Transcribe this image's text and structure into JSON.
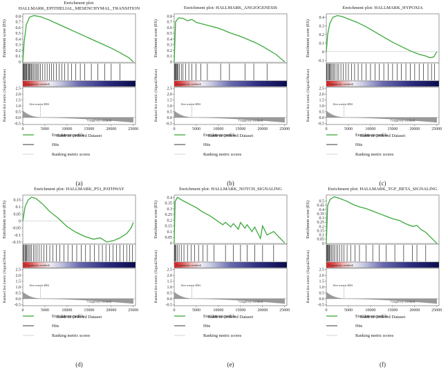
{
  "shared": {
    "x_axis_label": "Rank in Ordered Dataset",
    "x_ticks": [
      0,
      5000,
      10000,
      15000,
      20000,
      25000
    ],
    "x_max": 25500,
    "es_ylabel": "Enrichment score (ES)",
    "metric_ylabel": "Ranked list metric (Signal2Noise)",
    "metric_ticks": [
      "2.5",
      "2.0",
      "1.5",
      "1.0",
      "0.5",
      "0.0",
      "-0.5"
    ],
    "metric_range": [
      -0.6,
      2.6
    ],
    "positively": "'h' (positively correlated)",
    "negatively": "'f' (negatively correlated)",
    "zero_cross": "Zero cross at 4004",
    "zero_cross_rank": 4004,
    "legend": [
      "Enrichment profile",
      "Hits",
      "Ranking metric scores"
    ],
    "colors": {
      "profile": "#3aa83a",
      "hits": "#000000",
      "metric": "#8c8c8c",
      "positive": "#d62020",
      "negative": "#0b0b4e"
    }
  },
  "chart_data": [
    {
      "type": "line",
      "panel_label": "(a)",
      "title_line1": "Enrichment plot:",
      "title_line2": "HALLMARK_EPITHELIAL_MESENCHYMAL_TRANSITION",
      "y_ticks": [
        0.8,
        0.7,
        0.6,
        0.5,
        0.4,
        0.3,
        0.2,
        0.1,
        0.0
      ],
      "ylim": [
        -0.02,
        0.84
      ],
      "x": [
        0,
        300,
        800,
        1500,
        2500,
        4000,
        6000,
        8000,
        10000,
        12000,
        14000,
        16000,
        18000,
        20000,
        22000,
        24000,
        25000
      ],
      "y": [
        0.0,
        0.35,
        0.65,
        0.78,
        0.81,
        0.79,
        0.73,
        0.66,
        0.59,
        0.52,
        0.45,
        0.38,
        0.31,
        0.24,
        0.16,
        0.07,
        0.0
      ],
      "hits": [
        100,
        250,
        400,
        600,
        750,
        900,
        1100,
        1300,
        1500,
        1700,
        1900,
        2100,
        2400,
        2700,
        3000,
        3300,
        3600,
        4000,
        4500,
        5000,
        5500,
        6000,
        6500,
        7000,
        7600,
        8200,
        8800,
        9500,
        10200,
        11000,
        12000,
        13000,
        14000,
        15500,
        17000,
        18500,
        20000,
        22000
      ]
    },
    {
      "type": "line",
      "panel_label": "(b)",
      "title_line1": "Enrichment plot: HALLMARK_ANGIOGENESIS",
      "title_line2": "",
      "y_ticks": [
        0.8,
        0.7,
        0.6,
        0.5,
        0.4,
        0.3,
        0.2,
        0.1,
        0.0
      ],
      "ylim": [
        -0.02,
        0.84
      ],
      "x": [
        0,
        300,
        1000,
        2000,
        3000,
        4000,
        5000,
        6500,
        8000,
        9500,
        11000,
        12500,
        14000,
        15500,
        17000,
        18500,
        20000,
        21500,
        23000,
        25000
      ],
      "y": [
        0.0,
        0.7,
        0.77,
        0.76,
        0.72,
        0.74,
        0.69,
        0.66,
        0.63,
        0.6,
        0.56,
        0.51,
        0.47,
        0.43,
        0.38,
        0.33,
        0.27,
        0.2,
        0.13,
        0.0
      ],
      "hits": [
        80,
        200,
        350,
        500,
        700,
        900,
        1200,
        1600,
        2000,
        2600,
        3300,
        4000,
        4900,
        6000,
        7500,
        10500,
        12500,
        16000,
        18000,
        21000
      ]
    },
    {
      "type": "line",
      "panel_label": "(c)",
      "title_line1": "Enrichment plot: HALLMARK_HYPOXIA",
      "title_line2": "",
      "y_ticks": [
        0.4,
        0.3,
        0.2,
        0.1,
        0.0,
        -0.1
      ],
      "ylim": [
        -0.13,
        0.44
      ],
      "x": [
        0,
        300,
        800,
        1500,
        2500,
        3500,
        5000,
        7000,
        9000,
        11000,
        13000,
        15000,
        17000,
        19000,
        21000,
        22500,
        23500,
        24300,
        25000
      ],
      "y": [
        0.0,
        0.2,
        0.33,
        0.4,
        0.42,
        0.41,
        0.38,
        0.34,
        0.29,
        0.23,
        0.17,
        0.11,
        0.06,
        0.01,
        -0.03,
        -0.05,
        -0.07,
        -0.06,
        0.0
      ],
      "hits": [
        100,
        300,
        500,
        700,
        900,
        1100,
        1400,
        1700,
        2000,
        2400,
        2800,
        3300,
        3800,
        4400,
        5000,
        5700,
        6400,
        7200,
        8000,
        9000,
        10000,
        11000,
        12000,
        13000,
        14000,
        15000,
        16000,
        17000,
        18000,
        19000,
        20000,
        21000,
        22000,
        23000,
        23800,
        24500
      ]
    },
    {
      "type": "line",
      "panel_label": "(d)",
      "title_line1": "Enrichment plot: HALLMARK_P53_PATHWAY",
      "title_line2": "",
      "y_ticks": [
        0.15,
        0.1,
        0.05,
        0.0,
        -0.05,
        -0.1,
        -0.15
      ],
      "ylim": [
        -0.165,
        0.185
      ],
      "x": [
        0,
        500,
        1200,
        2000,
        3000,
        4500,
        6000,
        8000,
        10000,
        12000,
        14000,
        16000,
        17500,
        19000,
        20500,
        22000,
        23500,
        24500,
        25000
      ],
      "y": [
        0.0,
        0.1,
        0.15,
        0.17,
        0.16,
        0.12,
        0.07,
        0.02,
        -0.04,
        -0.08,
        -0.11,
        -0.13,
        -0.12,
        -0.15,
        -0.14,
        -0.12,
        -0.09,
        -0.05,
        -0.01
      ],
      "hits": [
        100,
        300,
        500,
        700,
        900,
        1100,
        1400,
        1700,
        2000,
        2400,
        2800,
        3200,
        3700,
        4200,
        4800,
        5400,
        6100,
        6800,
        7600,
        8400,
        9300,
        10200,
        11200,
        12200,
        13200,
        14200,
        15200,
        16200,
        17200,
        18000,
        18800,
        19600,
        20400,
        21200,
        22000,
        22800,
        23500,
        24200,
        24800
      ]
    },
    {
      "type": "line",
      "panel_label": "(e)",
      "title_line1": "Enrichment plot: HALLMARK_NOTCH_SIGNALING",
      "title_line2": "",
      "y_ticks": [
        0.4,
        0.35,
        0.3,
        0.25,
        0.2,
        0.15,
        0.1,
        0.05,
        0.0
      ],
      "ylim": [
        -0.01,
        0.42
      ],
      "x": [
        0,
        200,
        700,
        2000,
        3500,
        5000,
        6500,
        8000,
        9500,
        11000,
        11600,
        12800,
        13400,
        14500,
        15000,
        16000,
        16500,
        17600,
        18200,
        19500,
        20000,
        21000,
        22500,
        25000
      ],
      "y": [
        0.0,
        0.36,
        0.4,
        0.37,
        0.34,
        0.31,
        0.27,
        0.24,
        0.2,
        0.16,
        0.18,
        0.14,
        0.17,
        0.12,
        0.18,
        0.13,
        0.16,
        0.1,
        0.14,
        0.04,
        0.15,
        0.07,
        0.1,
        0.0
      ],
      "hits": [
        80,
        200,
        400,
        700,
        1100,
        1600,
        2200,
        3000,
        3800,
        4600,
        5500,
        6500,
        7500,
        9000,
        11600,
        13400,
        15000,
        16500,
        18200,
        20000,
        22500
      ]
    },
    {
      "type": "line",
      "panel_label": "(f)",
      "title_line1": "Enrichment plot: HALLMARK_TGF_BETA_SIGNALING",
      "title_line2": "",
      "y_ticks": [
        0.5,
        0.45,
        0.4,
        0.35,
        0.3,
        0.25,
        0.2,
        0.15,
        0.1,
        0.05,
        0.0
      ],
      "ylim": [
        -0.01,
        0.57
      ],
      "x": [
        0,
        300,
        900,
        1800,
        3000,
        4500,
        6000,
        7500,
        9000,
        10500,
        12000,
        13500,
        15000,
        16500,
        18000,
        19500,
        20500,
        21500,
        22500,
        25000
      ],
      "y": [
        0.0,
        0.45,
        0.52,
        0.55,
        0.53,
        0.5,
        0.46,
        0.43,
        0.41,
        0.38,
        0.35,
        0.32,
        0.29,
        0.27,
        0.23,
        0.2,
        0.21,
        0.16,
        0.13,
        0.0
      ],
      "hits": [
        80,
        200,
        350,
        500,
        700,
        900,
        1200,
        1500,
        1800,
        2200,
        2600,
        3000,
        3500,
        4000,
        4700,
        5500,
        6500,
        7500,
        9000,
        10500,
        12000,
        13500,
        15500,
        17500,
        19500,
        20500,
        22500
      ]
    }
  ]
}
